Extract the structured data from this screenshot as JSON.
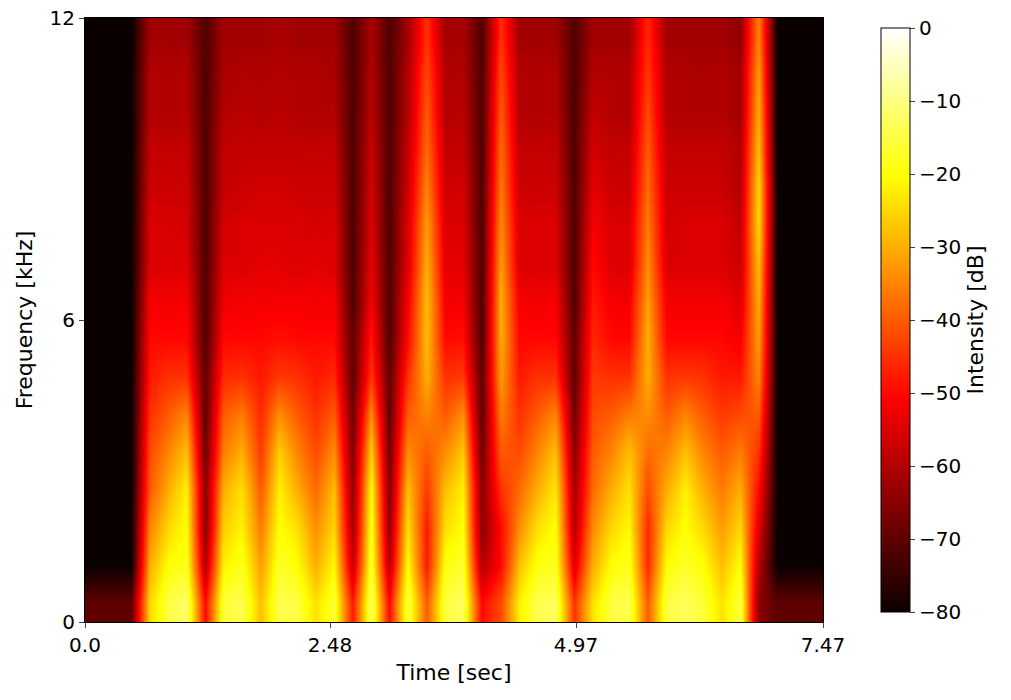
{
  "chart_data": {
    "type": "heatmap",
    "x_label": "Time [sec]",
    "y_label": "Frequency [kHz]",
    "colorbar_title": "Intensity [dB]",
    "xlim": [
      0,
      7.47
    ],
    "ylim": [
      0,
      12
    ],
    "xticks": [
      {
        "value": 0,
        "label": "0.0"
      },
      2.48,
      4.97,
      7.47
    ],
    "yticks": [
      0,
      6,
      12
    ],
    "zlim": [
      -80,
      0
    ],
    "zticks": [
      0,
      {
        "value": -10,
        "label": "−10"
      },
      {
        "value": -20,
        "label": "−20"
      },
      {
        "value": -30,
        "label": "−30"
      },
      {
        "value": -40,
        "label": "−40"
      },
      {
        "value": -50,
        "label": "−50"
      },
      {
        "value": -60,
        "label": "−60"
      },
      {
        "value": -70,
        "label": "−70"
      },
      {
        "value": -80,
        "label": "−80"
      }
    ],
    "x_edges": [
      0,
      0.19,
      0.37,
      0.56,
      0.75,
      0.93,
      1.12,
      1.31,
      1.49,
      1.68,
      1.87,
      2.05,
      2.24,
      2.43,
      2.61,
      2.8,
      2.99,
      3.17,
      3.36,
      3.55,
      3.74,
      3.92,
      4.11,
      4.3,
      4.48,
      4.67,
      4.86,
      5.04,
      5.23,
      5.42,
      5.6,
      5.79,
      5.98,
      6.16,
      6.35,
      6.54,
      6.72,
      6.91,
      7.1,
      7.28,
      7.47
    ],
    "y_edges": [
      0,
      0.75,
      1.5,
      2.25,
      3,
      3.75,
      4.5,
      5.25,
      6,
      6.75,
      7.5,
      8.25,
      9,
      9.75,
      10.5,
      11.25,
      12
    ],
    "cells_by_time": [
      [
        -70,
        -80,
        -80,
        -80,
        -80,
        -80,
        -80,
        -80,
        -80,
        -80,
        -80,
        -80,
        -80,
        -80,
        -80,
        -80
      ],
      [
        -70,
        -80,
        -80,
        -80,
        -80,
        -80,
        -80,
        -80,
        -80,
        -80,
        -80,
        -80,
        -80,
        -80,
        -80,
        -80
      ],
      [
        -70,
        -80,
        -80,
        -80,
        -80,
        -80,
        -80,
        -80,
        -80,
        -80,
        -80,
        -80,
        -80,
        -80,
        -80,
        -80
      ],
      [
        -25,
        -30,
        -35,
        -40,
        -42,
        -45,
        -48,
        -50,
        -52,
        -55,
        -55,
        -57,
        -58,
        -60,
        -60,
        -62
      ],
      [
        -15,
        -20,
        -25,
        -30,
        -35,
        -40,
        -45,
        -50,
        -52,
        -55,
        -55,
        -57,
        -58,
        -60,
        -60,
        -62
      ],
      [
        -12,
        -18,
        -20,
        -22,
        -28,
        -35,
        -45,
        -50,
        -52,
        -55,
        -56,
        -57,
        -58,
        -60,
        -60,
        -62
      ],
      [
        -50,
        -60,
        -65,
        -65,
        -68,
        -70,
        -70,
        -72,
        -72,
        -72,
        -72,
        -72,
        -72,
        -72,
        -72,
        -72
      ],
      [
        -16,
        -22,
        -26,
        -30,
        -36,
        -40,
        -46,
        -50,
        -53,
        -55,
        -56,
        -58,
        -58,
        -60,
        -61,
        -62
      ],
      [
        -14,
        -18,
        -22,
        -24,
        -30,
        -36,
        -45,
        -50,
        -52,
        -55,
        -55,
        -57,
        -58,
        -59,
        -60,
        -62
      ],
      [
        -28,
        -32,
        -36,
        -40,
        -44,
        -46,
        -48,
        -50,
        -52,
        -54,
        -55,
        -56,
        -58,
        -60,
        -60,
        -62
      ],
      [
        -14,
        -17,
        -20,
        -22,
        -26,
        -34,
        -44,
        -49,
        -52,
        -54,
        -55,
        -56,
        -58,
        -59,
        -60,
        -61
      ],
      [
        -15,
        -20,
        -24,
        -30,
        -35,
        -40,
        -45,
        -50,
        -52,
        -55,
        -55,
        -57,
        -58,
        -60,
        -60,
        -62
      ],
      [
        -24,
        -30,
        -34,
        -38,
        -42,
        -45,
        -48,
        -50,
        -52,
        -54,
        -56,
        -57,
        -58,
        -60,
        -60,
        -62
      ],
      [
        -16,
        -21,
        -25,
        -28,
        -34,
        -40,
        -46,
        -50,
        -52,
        -55,
        -55,
        -57,
        -58,
        -60,
        -61,
        -62
      ],
      [
        -48,
        -58,
        -62,
        -64,
        -66,
        -68,
        -70,
        -70,
        -72,
        -72,
        -72,
        -72,
        -72,
        -72,
        -72,
        -72
      ],
      [
        -12,
        -16,
        -18,
        -20,
        -26,
        -34,
        -44,
        -48,
        -52,
        -54,
        -55,
        -56,
        -57,
        -59,
        -60,
        -61
      ],
      [
        -50,
        -60,
        -64,
        -66,
        -68,
        -70,
        -70,
        -72,
        -72,
        -72,
        -72,
        -72,
        -72,
        -72,
        -72,
        -72
      ],
      [
        -15,
        -20,
        -24,
        -28,
        -34,
        -40,
        -45,
        -50,
        -52,
        -55,
        -55,
        -57,
        -58,
        -60,
        -60,
        -62
      ],
      [
        -40,
        -48,
        -48,
        -44,
        -40,
        -35,
        -30,
        -28,
        -28,
        -30,
        -32,
        -35,
        -38,
        -40,
        -42,
        -45
      ],
      [
        -15,
        -19,
        -24,
        -28,
        -34,
        -40,
        -45,
        -50,
        -52,
        -54,
        -55,
        -57,
        -58,
        -60,
        -60,
        -62
      ],
      [
        -13,
        -17,
        -20,
        -22,
        -27,
        -34,
        -44,
        -49,
        -52,
        -54,
        -55,
        -56,
        -58,
        -59,
        -60,
        -61
      ],
      [
        -50,
        -60,
        -65,
        -65,
        -68,
        -70,
        -70,
        -72,
        -72,
        -72,
        -72,
        -72,
        -72,
        -72,
        -72,
        -72
      ],
      [
        -42,
        -50,
        -50,
        -45,
        -40,
        -36,
        -32,
        -30,
        -30,
        -32,
        -34,
        -36,
        -38,
        -40,
        -42,
        -45
      ],
      [
        -22,
        -28,
        -34,
        -38,
        -42,
        -45,
        -48,
        -50,
        -52,
        -55,
        -55,
        -57,
        -58,
        -60,
        -60,
        -62
      ],
      [
        -14,
        -19,
        -24,
        -30,
        -35,
        -40,
        -45,
        -50,
        -52,
        -55,
        -55,
        -57,
        -58,
        -60,
        -60,
        -62
      ],
      [
        -13,
        -18,
        -20,
        -23,
        -28,
        -35,
        -45,
        -50,
        -52,
        -55,
        -55,
        -57,
        -58,
        -60,
        -60,
        -62
      ],
      [
        -45,
        -55,
        -60,
        -62,
        -65,
        -68,
        -70,
        -70,
        -72,
        -72,
        -72,
        -72,
        -72,
        -72,
        -72,
        -72
      ],
      [
        -24,
        -30,
        -34,
        -38,
        -40,
        -42,
        -44,
        -46,
        -48,
        -50,
        -52,
        -54,
        -56,
        -58,
        -60,
        -62
      ],
      [
        -15,
        -20,
        -25,
        -30,
        -35,
        -40,
        -45,
        -50,
        -52,
        -55,
        -55,
        -57,
        -58,
        -60,
        -60,
        -62
      ],
      [
        -14,
        -18,
        -21,
        -24,
        -28,
        -36,
        -45,
        -50,
        -52,
        -55,
        -55,
        -57,
        -58,
        -60,
        -60,
        -62
      ],
      [
        -40,
        -46,
        -46,
        -42,
        -38,
        -34,
        -30,
        -30,
        -32,
        -34,
        -36,
        -38,
        -40,
        -42,
        -44,
        -46
      ],
      [
        -15,
        -20,
        -25,
        -30,
        -35,
        -40,
        -45,
        -50,
        -52,
        -55,
        -56,
        -57,
        -58,
        -60,
        -60,
        -62
      ],
      [
        -13,
        -17,
        -20,
        -22,
        -28,
        -35,
        -44,
        -50,
        -52,
        -55,
        -55,
        -57,
        -58,
        -60,
        -60,
        -62
      ],
      [
        -16,
        -20,
        -25,
        -30,
        -35,
        -40,
        -45,
        -50,
        -52,
        -55,
        -55,
        -57,
        -58,
        -60,
        -61,
        -62
      ],
      [
        -24,
        -28,
        -32,
        -36,
        -40,
        -44,
        -48,
        -50,
        -52,
        -55,
        -55,
        -57,
        -58,
        -60,
        -60,
        -62
      ],
      [
        -15,
        -20,
        -25,
        -30,
        -36,
        -42,
        -48,
        -52,
        -55,
        -57,
        -58,
        -60,
        -60,
        -62,
        -62,
        -64
      ],
      [
        -65,
        -60,
        -55,
        -50,
        -45,
        -40,
        -35,
        -32,
        -30,
        -28,
        -25,
        -25,
        -28,
        -30,
        -32,
        -35
      ],
      [
        -70,
        -80,
        -80,
        -80,
        -80,
        -80,
        -80,
        -80,
        -80,
        -80,
        -80,
        -80,
        -80,
        -80,
        -80,
        -80
      ],
      [
        -70,
        -80,
        -80,
        -80,
        -80,
        -80,
        -80,
        -80,
        -80,
        -80,
        -80,
        -80,
        -80,
        -80,
        -80,
        -80
      ],
      [
        -70,
        -80,
        -80,
        -80,
        -80,
        -80,
        -80,
        -80,
        -80,
        -80,
        -80,
        -80,
        -80,
        -80,
        -80,
        -80
      ]
    ]
  }
}
